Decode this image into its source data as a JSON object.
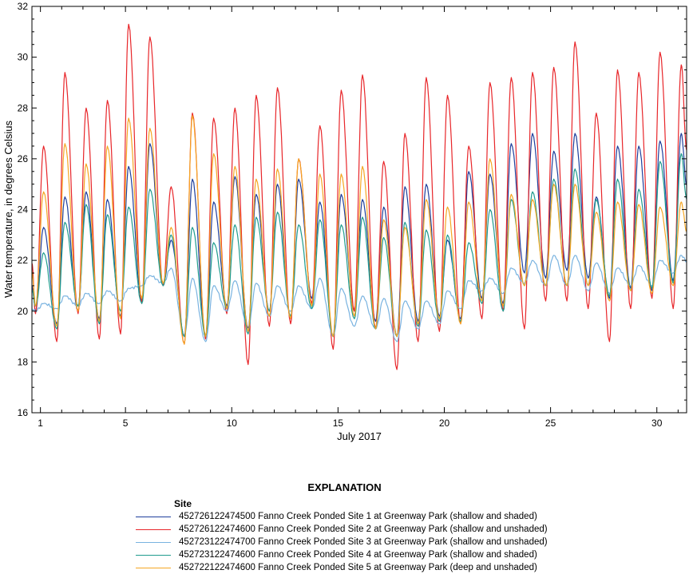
{
  "chart_data": {
    "type": "line",
    "title": "",
    "xlabel": "July 2017",
    "ylabel": "Water temperature, in degrees Celsius",
    "xlim": [
      0.6,
      31.4
    ],
    "ylim": [
      16,
      32
    ],
    "xticks": [
      1,
      5,
      10,
      15,
      20,
      25,
      30
    ],
    "xtick_labels": [
      "1",
      "5",
      "10",
      "15",
      "20",
      "25",
      "30"
    ],
    "yticks": [
      16,
      18,
      20,
      22,
      24,
      26,
      28,
      30,
      32
    ],
    "ytick_labels": [
      "16",
      "18",
      "20",
      "22",
      "24",
      "26",
      "28",
      "30",
      "32"
    ],
    "day_peak_offset": 0.65,
    "day_trough_offset": 0.27,
    "series": [
      {
        "name": "452726122474500 Fanno Creek Ponded Site 1 at Greenway Park (shallow and shaded)",
        "color": "#1f3f9c",
        "maxima": [
          23.3,
          24.5,
          24.7,
          24.4,
          25.7,
          26.6,
          22.8,
          25.2,
          24.3,
          25.3,
          24.6,
          25.0,
          25.2,
          24.3,
          24.6,
          24.4,
          24.1,
          24.9,
          25.0,
          22.8,
          25.5,
          25.4,
          26.6,
          27.0,
          26.3,
          27.0,
          24.5,
          26.5,
          26.5,
          26.7,
          27.0
        ],
        "minima": [
          20.0,
          19.5,
          20.0,
          19.7,
          19.8,
          20.4,
          21.0,
          19.0,
          19.0,
          20.2,
          19.3,
          20.0,
          19.7,
          20.5,
          19.0,
          20.0,
          19.6,
          19.0,
          19.6,
          19.8,
          19.7,
          20.5,
          20.3,
          21.5,
          21.3,
          21.6,
          21.3,
          20.5,
          20.9,
          20.8,
          21.2
        ]
      },
      {
        "name": "452726122474600 Fanno Creek Ponded Site 2 at Greenway Park (shallow and unshaded)",
        "color": "#e8262a",
        "maxima": [
          26.5,
          29.4,
          28.0,
          28.3,
          31.3,
          30.8,
          24.9,
          27.8,
          27.6,
          28.0,
          28.5,
          28.8,
          26.0,
          27.3,
          28.7,
          29.3,
          25.9,
          27.0,
          29.2,
          28.5,
          26.5,
          29.0,
          29.2,
          29.4,
          29.6,
          30.6,
          27.8,
          29.5,
          29.4,
          30.2,
          29.7
        ],
        "minima": [
          19.9,
          18.8,
          19.9,
          18.9,
          19.1,
          20.3,
          21.0,
          18.7,
          18.9,
          19.9,
          17.9,
          19.4,
          19.5,
          20.3,
          18.5,
          20.0,
          19.3,
          17.7,
          18.8,
          19.2,
          19.5,
          19.7,
          20.0,
          19.3,
          20.4,
          20.4,
          20.1,
          18.8,
          20.1,
          20.5,
          20.1
        ]
      },
      {
        "name": "452723122474700 Fanno Creek Ponded Site 3 at Greenway Park (shallow and unshaded)",
        "color": "#79b3e0",
        "maxima": [
          20.3,
          20.6,
          20.7,
          20.8,
          20.9,
          21.4,
          21.7,
          21.3,
          21.0,
          21.2,
          21.1,
          21.0,
          21.0,
          21.3,
          20.9,
          20.6,
          20.5,
          20.4,
          20.4,
          20.8,
          21.2,
          21.3,
          21.7,
          22.0,
          22.2,
          22.2,
          21.9,
          21.7,
          21.8,
          22.0,
          22.2
        ],
        "minima": [
          20.0,
          20.1,
          20.2,
          20.3,
          20.4,
          21.0,
          21.1,
          19.0,
          18.8,
          20.0,
          19.3,
          19.8,
          20.0,
          20.1,
          19.0,
          19.4,
          19.3,
          18.8,
          19.3,
          19.5,
          20.1,
          20.8,
          20.7,
          21.1,
          21.0,
          21.0,
          20.8,
          20.7,
          21.0,
          21.0,
          21.5
        ]
      },
      {
        "name": "452723122474600 Fanno Creek Ponded Site 4 at Greenway Park (shallow and shaded)",
        "color": "#1f9b8e",
        "maxima": [
          22.3,
          23.5,
          24.2,
          23.8,
          24.1,
          24.8,
          23.0,
          23.3,
          22.7,
          23.4,
          23.7,
          23.9,
          23.4,
          23.6,
          23.4,
          23.7,
          22.9,
          23.5,
          23.2,
          23.0,
          22.7,
          24.0,
          24.4,
          24.7,
          25.2,
          25.6,
          24.4,
          25.2,
          24.8,
          25.9,
          26.2
        ],
        "minima": [
          20.2,
          19.3,
          20.2,
          19.5,
          20.0,
          20.3,
          21.0,
          19.0,
          19.0,
          20.1,
          19.1,
          20.0,
          19.8,
          20.1,
          19.0,
          19.7,
          19.3,
          19.0,
          19.4,
          19.6,
          19.6,
          20.3,
          20.0,
          21.0,
          21.0,
          21.0,
          21.0,
          20.6,
          20.8,
          20.9,
          21.1
        ]
      },
      {
        "name": "452722122474600 Fanno Creek Ponded Site 5 at Greenway Park (deep and unshaded)",
        "color": "#f5a623",
        "maxima": [
          24.7,
          26.6,
          25.8,
          26.5,
          27.6,
          27.2,
          23.3,
          27.7,
          26.2,
          25.7,
          25.2,
          25.6,
          26.0,
          25.4,
          25.4,
          25.7,
          23.6,
          23.3,
          24.4,
          24.1,
          24.3,
          26.0,
          24.6,
          24.4,
          25.0,
          25.0,
          23.9,
          24.3,
          24.2,
          24.1,
          24.3
        ],
        "minima": [
          20.2,
          19.4,
          20.0,
          19.6,
          19.7,
          20.5,
          21.1,
          18.7,
          19.0,
          20.1,
          19.2,
          19.8,
          19.7,
          20.2,
          19.0,
          19.8,
          19.3,
          19.0,
          19.5,
          19.7,
          19.5,
          20.4,
          20.2,
          21.0,
          21.0,
          21.0,
          21.0,
          20.4,
          20.8,
          20.7,
          21.0
        ]
      }
    ],
    "legend": {
      "heading": "EXPLANATION",
      "subheading": "Site",
      "position": "bottom"
    }
  }
}
